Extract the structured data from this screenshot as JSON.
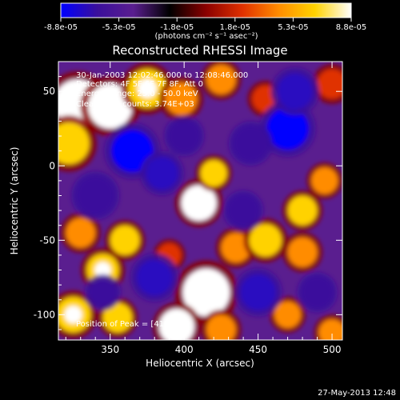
{
  "chart_data": {
    "type": "heatmap",
    "title": "Reconstructed RHESSI Image",
    "colorbar": {
      "tick_labels": [
        "-8.8e-05",
        "-5.3e-05",
        "-1.8e-05",
        "1.8e-05",
        "5.3e-05",
        "8.8e-05"
      ],
      "range": [
        -8.8e-05,
        8.8e-05
      ],
      "unit_label": "(photons cm⁻² s⁻¹ asec⁻²)",
      "colors": [
        "#0000ff",
        "#3a0f9c",
        "#5a1e8f",
        "#000000",
        "#8a0000",
        "#e03000",
        "#ff8c00",
        "#ffd200",
        "#ffffff"
      ]
    },
    "x_axis": {
      "label": "Heliocentric X (arcsec)",
      "range": [
        315,
        507
      ],
      "ticks": [
        350,
        400,
        450,
        500
      ]
    },
    "y_axis": {
      "label": "Heliocentric Y (arcsec)",
      "range": [
        -117,
        70
      ],
      "ticks": [
        50,
        0,
        -50,
        -100
      ]
    },
    "annotations": {
      "time": "30-Jan-2003 12:02:46.000 to 12:08:46.000",
      "detectors": "Detectors: 4F 5F 6F 7F 8F, Att 0",
      "energy": "Energy Range: 25.0 - 50.0 keV",
      "clean": "Clean     Total counts: 3.74E+03",
      "peak": "Position of Peak = [415,-85]"
    },
    "peak_position": [
      415,
      -85
    ],
    "blobs": [
      {
        "x": 328,
        "y": 42,
        "v": 1.0,
        "r": 16
      },
      {
        "x": 322,
        "y": 15,
        "v": 0.8,
        "r": 14
      },
      {
        "x": 350,
        "y": 40,
        "v": 0.9,
        "r": 15
      },
      {
        "x": 375,
        "y": 52,
        "v": 0.85,
        "r": 13
      },
      {
        "x": 398,
        "y": 45,
        "v": 0.7,
        "r": 11
      },
      {
        "x": 425,
        "y": 58,
        "v": 0.6,
        "r": 10
      },
      {
        "x": 455,
        "y": 45,
        "v": 0.45,
        "r": 9
      },
      {
        "x": 500,
        "y": 55,
        "v": 0.5,
        "r": 10
      },
      {
        "x": 410,
        "y": -25,
        "v": 1.0,
        "r": 12
      },
      {
        "x": 420,
        "y": -5,
        "v": 0.75,
        "r": 9
      },
      {
        "x": 435,
        "y": -55,
        "v": 0.7,
        "r": 10
      },
      {
        "x": 455,
        "y": -50,
        "v": 0.8,
        "r": 11
      },
      {
        "x": 480,
        "y": -30,
        "v": 0.75,
        "r": 10
      },
      {
        "x": 495,
        "y": -10,
        "v": 0.6,
        "r": 9
      },
      {
        "x": 480,
        "y": -58,
        "v": 0.65,
        "r": 10
      },
      {
        "x": 360,
        "y": -50,
        "v": 0.8,
        "r": 10
      },
      {
        "x": 345,
        "y": -70,
        "v": 0.85,
        "r": 11
      },
      {
        "x": 330,
        "y": -45,
        "v": 0.7,
        "r": 10
      },
      {
        "x": 325,
        "y": -100,
        "v": 0.85,
        "r": 12
      },
      {
        "x": 355,
        "y": -102,
        "v": 0.8,
        "r": 10
      },
      {
        "x": 415,
        "y": -85,
        "v": 1.0,
        "r": 16
      },
      {
        "x": 395,
        "y": -108,
        "v": 0.9,
        "r": 12
      },
      {
        "x": 425,
        "y": -110,
        "v": 0.7,
        "r": 10
      },
      {
        "x": 470,
        "y": -100,
        "v": 0.55,
        "r": 9
      },
      {
        "x": 500,
        "y": -112,
        "v": 0.6,
        "r": 9
      },
      {
        "x": 390,
        "y": -60,
        "v": 0.5,
        "r": 8
      },
      {
        "x": 365,
        "y": 10,
        "v": -0.9,
        "r": 14
      },
      {
        "x": 385,
        "y": -5,
        "v": -0.75,
        "r": 11
      },
      {
        "x": 470,
        "y": 25,
        "v": -1.0,
        "r": 14
      },
      {
        "x": 475,
        "y": 50,
        "v": -0.7,
        "r": 12
      },
      {
        "x": 445,
        "y": 15,
        "v": -0.55,
        "r": 11
      },
      {
        "x": 340,
        "y": -20,
        "v": -0.6,
        "r": 12
      },
      {
        "x": 380,
        "y": -75,
        "v": -0.7,
        "r": 12
      },
      {
        "x": 450,
        "y": -85,
        "v": -0.65,
        "r": 12
      },
      {
        "x": 490,
        "y": -85,
        "v": -0.55,
        "r": 10
      },
      {
        "x": 440,
        "y": -30,
        "v": -0.5,
        "r": 10
      },
      {
        "x": 400,
        "y": 20,
        "v": -0.5,
        "r": 10
      },
      {
        "x": 345,
        "y": -85,
        "v": -0.45,
        "r": 9
      }
    ]
  },
  "footer": {
    "date": "27-May-2013 12:48"
  }
}
